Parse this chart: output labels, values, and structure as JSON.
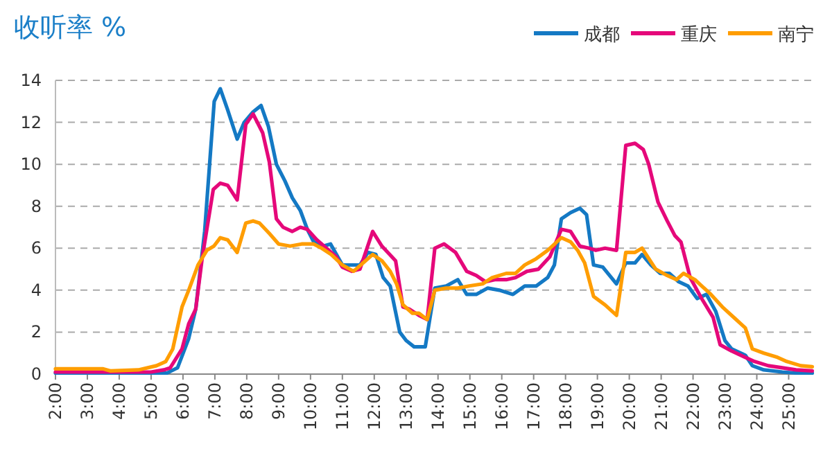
{
  "chart_data": {
    "type": "line",
    "title": "收听率 %",
    "xlim": [
      2,
      25.75
    ],
    "ylim": [
      0,
      14
    ],
    "yticks": [
      0,
      2,
      4,
      6,
      8,
      10,
      12,
      14
    ],
    "xticks": [
      {
        "value": 2,
        "label": "2:00"
      },
      {
        "value": 3,
        "label": "3:00"
      },
      {
        "value": 4,
        "label": "4:00"
      },
      {
        "value": 5,
        "label": "5:00"
      },
      {
        "value": 6,
        "label": "6:00"
      },
      {
        "value": 7,
        "label": "7:00"
      },
      {
        "value": 8,
        "label": "8:00"
      },
      {
        "value": 9,
        "label": "9:00"
      },
      {
        "value": 10,
        "label": "10:00"
      },
      {
        "value": 11,
        "label": "11:00"
      },
      {
        "value": 12,
        "label": "12:00"
      },
      {
        "value": 13,
        "label": "13:00"
      },
      {
        "value": 14,
        "label": "14:00"
      },
      {
        "value": 15,
        "label": "15:00"
      },
      {
        "value": 16,
        "label": "16:00"
      },
      {
        "value": 17,
        "label": "17:00"
      },
      {
        "value": 18,
        "label": "18:00"
      },
      {
        "value": 19,
        "label": "19:00"
      },
      {
        "value": 20,
        "label": "20:00"
      },
      {
        "value": 21,
        "label": "21:00"
      },
      {
        "value": 22,
        "label": "22:00"
      },
      {
        "value": 23,
        "label": "23:00"
      },
      {
        "value": 24,
        "label": "24:00"
      },
      {
        "value": 25,
        "label": "25:00"
      }
    ],
    "grid": "y",
    "legend": "top right",
    "marker": "none",
    "line_style": "solid",
    "series": [
      {
        "name": "成都",
        "color": "#1479c4",
        "x": [
          2,
          3,
          4,
          5,
          5.5,
          5.83,
          6.18,
          6.4,
          6.68,
          6.98,
          7.17,
          7.4,
          7.7,
          7.92,
          8.2,
          8.45,
          8.68,
          8.93,
          9.2,
          9.43,
          9.68,
          9.9,
          10.1,
          10.4,
          10.63,
          11.0,
          11.3,
          11.55,
          11.8,
          12.05,
          12.28,
          12.5,
          12.8,
          13.0,
          13.25,
          13.6,
          13.9,
          14.26,
          14.62,
          14.9,
          15.2,
          15.56,
          15.92,
          16.35,
          16.72,
          17.08,
          17.44,
          17.65,
          17.87,
          18.16,
          18.45,
          18.66,
          18.88,
          19.17,
          19.6,
          19.89,
          20.18,
          20.4,
          20.68,
          20.97,
          21.26,
          21.55,
          21.84,
          22.13,
          22.42,
          22.71,
          23.0,
          23.21,
          23.64,
          23.86,
          24.22,
          24.8,
          25.23,
          25.74
        ],
        "values": [
          0.05,
          0.05,
          0.05,
          0.05,
          0.05,
          0.3,
          1.7,
          3.1,
          6.8,
          13.0,
          13.6,
          12.6,
          11.2,
          12.0,
          12.5,
          12.8,
          11.8,
          10.0,
          9.2,
          8.4,
          7.8,
          6.9,
          6.3,
          6.1,
          6.2,
          5.2,
          5.2,
          5.2,
          5.8,
          5.7,
          4.6,
          4.2,
          2.0,
          1.6,
          1.3,
          1.3,
          4.1,
          4.2,
          4.5,
          3.8,
          3.8,
          4.1,
          4.0,
          3.8,
          4.2,
          4.2,
          4.6,
          5.2,
          7.4,
          7.7,
          7.9,
          7.6,
          5.2,
          5.1,
          4.3,
          5.3,
          5.3,
          5.7,
          5.2,
          4.8,
          4.8,
          4.4,
          4.2,
          3.6,
          3.8,
          3.0,
          1.6,
          1.2,
          0.9,
          0.4,
          0.2,
          0.1,
          0.05,
          0.05
        ]
      },
      {
        "name": "重庆",
        "color": "#e5087a",
        "x": [
          2,
          3,
          4,
          5,
          5.4,
          5.6,
          5.97,
          6.18,
          6.4,
          6.6,
          6.95,
          7.17,
          7.4,
          7.7,
          7.97,
          8.2,
          8.5,
          8.71,
          8.93,
          9.14,
          9.43,
          9.68,
          9.9,
          10.2,
          10.5,
          10.8,
          11.0,
          11.3,
          11.55,
          11.95,
          12.24,
          12.67,
          12.9,
          13.1,
          13.4,
          13.66,
          13.9,
          14.19,
          14.55,
          14.9,
          15.2,
          15.49,
          15.78,
          16.14,
          16.43,
          16.79,
          17.15,
          17.51,
          17.87,
          18.16,
          18.45,
          18.74,
          18.95,
          19.24,
          19.6,
          19.89,
          20.18,
          20.44,
          20.61,
          20.9,
          21.19,
          21.43,
          21.62,
          21.91,
          22.27,
          22.63,
          22.85,
          23.21,
          23.64,
          23.93,
          24.36,
          24.8,
          25.23,
          25.74
        ],
        "values": [
          0.1,
          0.1,
          0.1,
          0.1,
          0.2,
          0.3,
          1.2,
          2.4,
          3.1,
          5.5,
          8.8,
          9.1,
          9.0,
          8.3,
          11.9,
          12.4,
          11.5,
          10.1,
          7.4,
          7.0,
          6.8,
          7.0,
          6.9,
          6.4,
          6.0,
          5.6,
          5.1,
          4.9,
          5.0,
          6.8,
          6.1,
          5.4,
          3.2,
          3.1,
          2.8,
          2.6,
          6.0,
          6.2,
          5.8,
          4.9,
          4.7,
          4.4,
          4.5,
          4.5,
          4.6,
          4.9,
          5.0,
          5.6,
          6.9,
          6.8,
          6.1,
          6.0,
          5.9,
          6.0,
          5.9,
          10.9,
          11.0,
          10.7,
          10.0,
          8.2,
          7.3,
          6.6,
          6.3,
          4.6,
          3.6,
          2.7,
          1.4,
          1.1,
          0.8,
          0.6,
          0.4,
          0.3,
          0.2,
          0.15
        ]
      },
      {
        "name": "南宁",
        "color": "#ff9d00",
        "x": [
          2,
          3,
          3.5,
          3.73,
          4.6,
          5.17,
          5.46,
          5.68,
          5.97,
          6.18,
          6.47,
          6.75,
          6.97,
          7.17,
          7.4,
          7.7,
          7.97,
          8.2,
          8.4,
          8.71,
          9.0,
          9.36,
          9.72,
          10.1,
          10.35,
          10.65,
          11.0,
          11.35,
          11.65,
          11.95,
          12.24,
          12.5,
          12.7,
          12.9,
          13.2,
          13.4,
          13.66,
          13.9,
          14.26,
          14.62,
          14.98,
          15.4,
          15.7,
          16.14,
          16.43,
          16.72,
          17.08,
          17.44,
          17.87,
          18.16,
          18.38,
          18.6,
          18.88,
          19.24,
          19.6,
          19.89,
          20.18,
          20.4,
          20.83,
          21.19,
          21.48,
          21.7,
          22.06,
          22.56,
          22.92,
          23.28,
          23.64,
          23.86,
          24.22,
          24.65,
          24.94,
          25.38,
          25.74
        ],
        "values": [
          0.25,
          0.25,
          0.25,
          0.15,
          0.2,
          0.4,
          0.6,
          1.2,
          3.2,
          4.0,
          5.2,
          5.9,
          6.1,
          6.5,
          6.4,
          5.8,
          7.2,
          7.3,
          7.2,
          6.7,
          6.2,
          6.1,
          6.2,
          6.2,
          6.0,
          5.7,
          5.2,
          4.9,
          5.3,
          5.7,
          5.4,
          4.9,
          4.3,
          3.3,
          2.9,
          2.9,
          2.6,
          4.0,
          4.1,
          4.1,
          4.2,
          4.3,
          4.6,
          4.8,
          4.8,
          5.2,
          5.5,
          5.9,
          6.5,
          6.3,
          5.9,
          5.3,
          3.7,
          3.3,
          2.8,
          5.8,
          5.8,
          6.0,
          5.0,
          4.7,
          4.5,
          4.8,
          4.5,
          3.8,
          3.2,
          2.7,
          2.2,
          1.2,
          1.0,
          0.8,
          0.6,
          0.4,
          0.35
        ]
      }
    ]
  }
}
